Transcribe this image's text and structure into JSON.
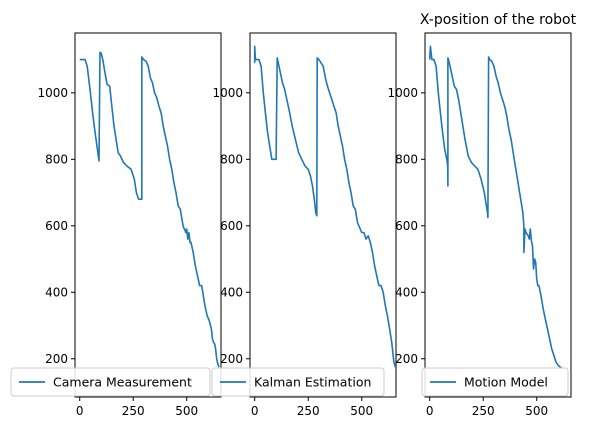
{
  "chart_data": [
    {
      "type": "line",
      "title": "",
      "xlabel": "",
      "ylabel": "",
      "xlim": [
        -22,
        660
      ],
      "ylim": [
        85,
        1180
      ],
      "xticks": [
        0,
        250,
        500
      ],
      "yticks": [
        200,
        400,
        600,
        800,
        1000
      ],
      "legend_loc": "lower-left",
      "series": [
        {
          "name": "Camera Measurement",
          "color": "#1f77b4",
          "x": [
            0,
            12,
            18,
            25,
            35,
            50,
            60,
            72,
            85,
            90,
            95,
            100,
            108,
            118,
            128,
            140,
            150,
            160,
            170,
            180,
            190,
            205,
            220,
            240,
            255,
            265,
            275,
            280,
            290,
            290,
            298,
            310,
            320,
            330,
            340,
            350,
            360,
            370,
            380,
            390,
            400,
            410,
            420,
            430,
            440,
            450,
            460,
            470,
            480,
            485,
            490,
            495,
            500,
            505,
            510,
            515,
            520,
            530,
            540,
            550,
            560,
            565,
            570,
            575,
            585,
            595,
            605,
            615,
            620,
            625,
            630,
            635,
            640,
            645,
            650
          ],
          "y": [
            1100,
            1100,
            1100,
            1100,
            1080,
            1000,
            940,
            880,
            820,
            795,
            1122,
            1120,
            1100,
            1060,
            1025,
            1020,
            960,
            900,
            860,
            820,
            810,
            790,
            780,
            770,
            740,
            700,
            680,
            680,
            680,
            1108,
            1100,
            1095,
            1080,
            1045,
            1030,
            1000,
            985,
            960,
            940,
            900,
            870,
            840,
            800,
            770,
            730,
            700,
            660,
            650,
            610,
            595,
            590,
            580,
            590,
            560,
            580,
            550,
            550,
            520,
            480,
            450,
            420,
            420,
            420,
            400,
            360,
            330,
            315,
            290,
            260,
            250,
            245,
            230,
            200,
            185,
            175
          ]
        },
        {
          "name": "Kalman Estimation",
          "color": "#1f77b4",
          "x": [
            0,
            0,
            3,
            20,
            30,
            40,
            50,
            60,
            70,
            80,
            90,
            95,
            100,
            105,
            110,
            120,
            130,
            140,
            150,
            160,
            175,
            190,
            205,
            220,
            235,
            250,
            260,
            270,
            280,
            285,
            290,
            292,
            300,
            310,
            320,
            330,
            340,
            350,
            360,
            370,
            380,
            390,
            400,
            410,
            420,
            430,
            440,
            450,
            460,
            470,
            480,
            490,
            500,
            510,
            520,
            530,
            540,
            550,
            560,
            570,
            580,
            590,
            600,
            610,
            620,
            630,
            640,
            650,
            660
          ],
          "y": [
            1090,
            1140,
            1100,
            1100,
            1080,
            1000,
            940,
            880,
            840,
            800,
            800,
            800,
            800,
            1105,
            1090,
            1060,
            1030,
            1010,
            980,
            950,
            900,
            860,
            820,
            800,
            780,
            770,
            750,
            720,
            670,
            640,
            630,
            1105,
            1100,
            1090,
            1080,
            1045,
            1020,
            1000,
            980,
            960,
            940,
            900,
            870,
            840,
            800,
            770,
            730,
            700,
            660,
            650,
            610,
            595,
            580,
            580,
            560,
            570,
            550,
            520,
            480,
            450,
            420,
            420,
            400,
            360,
            330,
            290,
            250,
            190,
            170
          ]
        },
        {
          "name": "Motion Model",
          "color": "#1f77b4",
          "x": [
            0,
            3,
            10,
            20,
            30,
            40,
            50,
            60,
            70,
            80,
            84,
            85,
            85,
            88,
            95,
            105,
            115,
            125,
            135,
            150,
            165,
            180,
            195,
            210,
            225,
            240,
            255,
            265,
            270,
            272,
            275,
            280,
            290,
            300,
            310,
            320,
            330,
            340,
            350,
            360,
            370,
            380,
            390,
            400,
            410,
            420,
            430,
            435,
            440,
            440,
            445,
            450,
            460,
            465,
            470,
            475,
            480,
            485,
            490,
            495,
            500,
            505,
            510,
            520,
            530,
            540,
            550,
            560,
            570,
            580,
            590,
            600,
            610,
            620
          ],
          "y": [
            1100,
            1140,
            1100,
            1100,
            1080,
            1000,
            940,
            880,
            830,
            800,
            780,
            720,
            1105,
            1100,
            1080,
            1050,
            1020,
            1010,
            980,
            920,
            860,
            810,
            790,
            780,
            770,
            740,
            700,
            660,
            640,
            625,
            1108,
            1100,
            1095,
            1080,
            1050,
            1030,
            1000,
            980,
            960,
            930,
            890,
            860,
            820,
            780,
            740,
            700,
            660,
            640,
            600,
            520,
            590,
            580,
            570,
            560,
            590,
            555,
            540,
            470,
            500,
            490,
            440,
            420,
            420,
            390,
            350,
            320,
            290,
            260,
            230,
            210,
            190,
            180,
            175,
            170
          ]
        }
      ]
    },
    {
      "type": "line",
      "title": "",
      "note": "see series above"
    }
  ],
  "panels": [
    {
      "title": "",
      "legend_label": "Camera Measurement",
      "ytick_labels": [
        "200",
        "400",
        "600",
        "800",
        "1000"
      ],
      "xtick_labels": [
        "0",
        "250",
        "500"
      ]
    },
    {
      "title": "",
      "legend_label": "Kalman Estimation",
      "ytick_labels": [
        "200",
        "400",
        "600",
        "800",
        "1000"
      ],
      "xtick_labels": [
        "0",
        "250",
        "500"
      ]
    },
    {
      "title": "X-position of the robot",
      "legend_label": "Motion Model",
      "ytick_labels": [
        "200",
        "400",
        "600",
        "800",
        "1000"
      ],
      "xtick_labels": [
        "0",
        "250",
        "500"
      ]
    }
  ],
  "colors": {
    "line": "#1f77b4",
    "axes": "#000000",
    "legend_border": "#cccccc"
  }
}
